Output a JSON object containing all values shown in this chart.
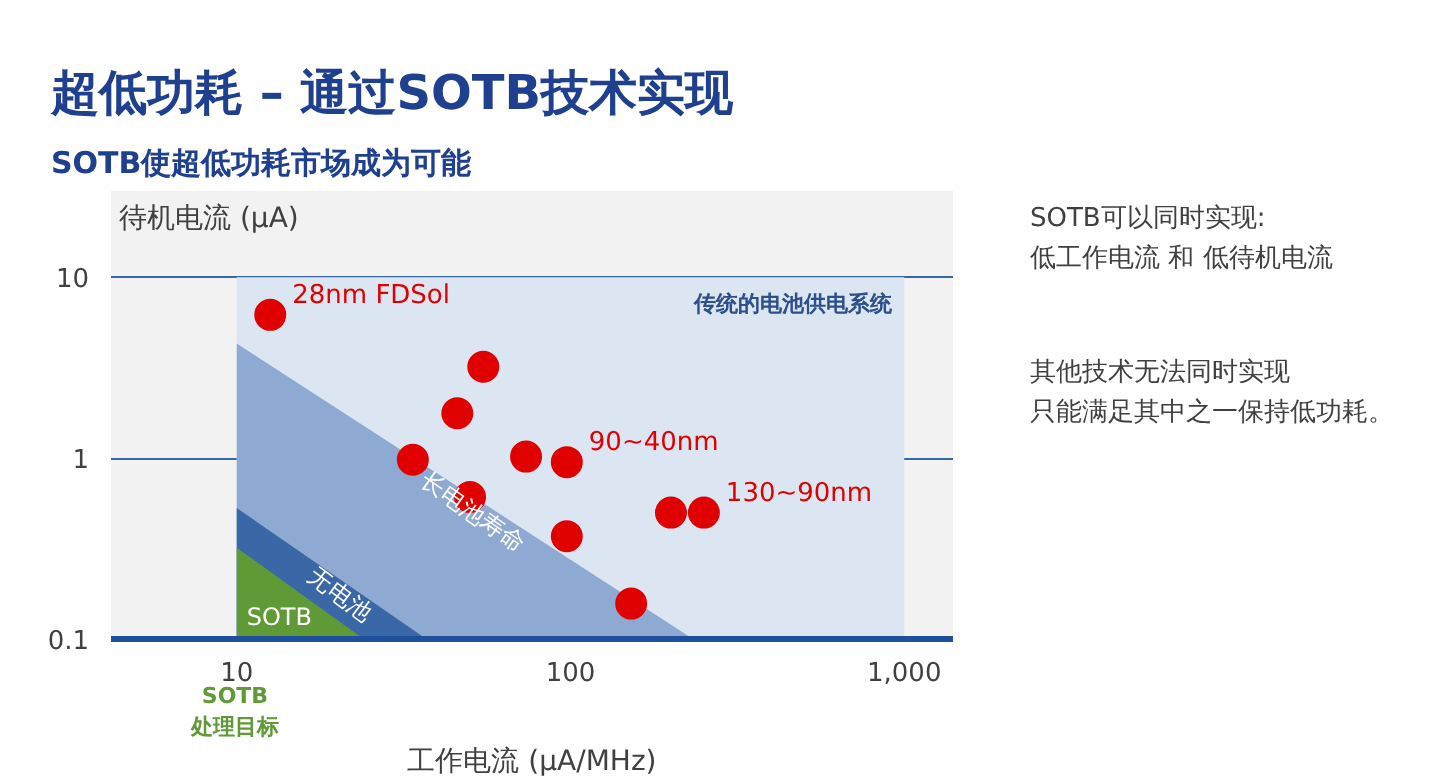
{
  "chart_data": {
    "type": "scatter",
    "title": "超低功耗 – 通过SOTB技术实现",
    "subtitle": "SOTB使超低功耗市场成为可能",
    "xlabel": "工作电流 (μA/MHz)",
    "ylabel": "待机电流 (μA)",
    "log": "xy",
    "xlim": [
      4.2,
      1400
    ],
    "ylim": [
      0.1,
      30
    ],
    "xticks": [
      10,
      100,
      {
        "value": 1000,
        "label": "1,000"
      }
    ],
    "yticks": [
      0.1,
      1,
      10
    ],
    "grid": "y",
    "series": [
      {
        "type": "area",
        "name": "传统的电池供电系统",
        "color": "#dce6f2",
        "x": [
          10,
          1000
        ],
        "values": [
          10,
          10
        ]
      },
      {
        "type": "area",
        "name": "长电池寿命",
        "color": "#8eaad3",
        "x": [
          10,
          233
        ],
        "values": [
          4.3,
          0.1
        ]
      },
      {
        "type": "area",
        "name": "无电池",
        "color": "#3a67a6",
        "x": [
          10,
          37
        ],
        "values": [
          0.53,
          0.1
        ]
      },
      {
        "type": "area",
        "name": "SOTB",
        "color": "#5f9a37",
        "x": [
          10,
          24
        ],
        "values": [
          0.32,
          0.1
        ]
      },
      {
        "name": "28nm FDSol",
        "color": "#e00000",
        "marker": "circle",
        "x": [
          12.6
        ],
        "values": [
          6.2
        ]
      },
      {
        "name": "90~40nm",
        "color": "#e00000",
        "marker": "circle",
        "x": [
          54.8,
          45.8,
          33.7,
          73.6,
          97.5,
          50
        ],
        "values": [
          3.2,
          1.77,
          0.98,
          1.02,
          0.95,
          0.61
        ]
      },
      {
        "name": "130~90nm",
        "color": "#e00000",
        "marker": "circle",
        "x": [
          97.5,
          200,
          251,
          152
        ],
        "values": [
          0.37,
          0.5,
          0.5,
          0.157
        ]
      }
    ],
    "annotations": [
      "SOTB\n处理目标",
      "SOTB可以同时实现:",
      "低工作电流 和 低待机电流",
      "其他技术无法同时实现",
      "只能满足其中之一保持低功耗。"
    ]
  }
}
